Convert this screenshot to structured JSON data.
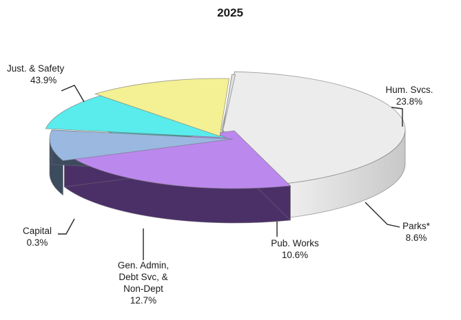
{
  "chart_data": {
    "type": "pie",
    "style": "3d-exploded",
    "title": "2025",
    "slices": [
      {
        "label": "Just. & Safety",
        "label_lines": [
          "Just. & Safety"
        ],
        "percent_text": "43.9%",
        "value": 43.9,
        "color": "#ececec",
        "side_color": "#d2d2d2"
      },
      {
        "label": "Hum. Svcs.",
        "label_lines": [
          "Hum. Svcs."
        ],
        "percent_text": "23.8%",
        "value": 23.8,
        "color": "#bb88ee",
        "side_color": "#4b3068"
      },
      {
        "label": "Parks*",
        "label_lines": [
          "Parks*"
        ],
        "percent_text": "8.6%",
        "value": 8.6,
        "color": "#9ab8e0",
        "side_color": "#3d4b5e"
      },
      {
        "label": "Pub. Works",
        "label_lines": [
          "Pub. Works"
        ],
        "percent_text": "10.6%",
        "value": 10.6,
        "color": "#5aecec",
        "side_color": "#2aa0a0"
      },
      {
        "label": "Gen. Admin, Debt Svc, & Non-Dept",
        "label_lines": [
          "Gen. Admin,",
          "Debt Svc, &",
          "Non-Dept"
        ],
        "percent_text": "12.7%",
        "value": 12.7,
        "color": "#f4f094",
        "side_color": "#dcd878"
      },
      {
        "label": "Capital",
        "label_lines": [
          "Capital"
        ],
        "percent_text": "0.3%",
        "value": 0.3,
        "color": "#e0e0e0",
        "side_color": "#c4c4c4"
      }
    ]
  }
}
